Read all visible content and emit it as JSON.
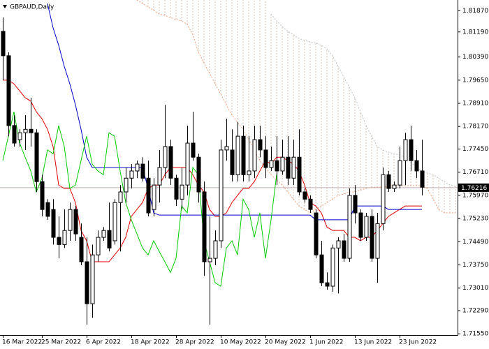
{
  "chart_data": {
    "type": "candlestick",
    "title": "GBPAUD,Daily",
    "categories": [
      "16 Mar 2022",
      null,
      null,
      null,
      null,
      null,
      null,
      "25 Mar 2022",
      null,
      null,
      null,
      null,
      null,
      null,
      null,
      "6 Apr 2022",
      null,
      null,
      null,
      null,
      null,
      null,
      null,
      "18 Apr 2022",
      null,
      null,
      null,
      null,
      null,
      null,
      null,
      "28 Apr 2022",
      null,
      null,
      null,
      null,
      null,
      null,
      null,
      "10 May 2022",
      null,
      null,
      null,
      null,
      null,
      null,
      null,
      "20 May 2022",
      null,
      null,
      null,
      null,
      null,
      null,
      null,
      "1 Jun 2022",
      null,
      null,
      null,
      null,
      null,
      null,
      null,
      "13 Jun 2022",
      null,
      null,
      null,
      null,
      null,
      null,
      null,
      "23 Jun 2022",
      null,
      null,
      null,
      null,
      null,
      null,
      null,
      null,
      null,
      null
    ],
    "open": [
      1.8121,
      1.8043,
      1.782,
      1.7775,
      1.7797,
      1.7808,
      1.7797,
      1.7641,
      1.7574,
      1.7552,
      1.7463,
      1.744,
      1.7485,
      1.7552,
      1.7463,
      1.7385,
      1.7251,
      1.7407,
      1.7463,
      1.7485,
      1.7452,
      1.7574,
      1.7608,
      1.7652,
      1.7675,
      1.7697,
      1.7652,
      1.7552,
      1.763,
      1.7686,
      1.7753,
      1.7652,
      1.7585,
      1.763,
      1.7764,
      1.7719,
      1.7608,
      1.7385,
      1.7396,
      1.7452,
      1.7742,
      1.7742,
      1.7663,
      1.7786,
      1.7663,
      1.7675,
      1.7775,
      1.7742,
      1.7686,
      1.7708,
      1.7675,
      1.7719,
      1.7652,
      1.7719,
      1.7608,
      1.7585,
      1.7541,
      1.7407,
      1.7318,
      1.7307,
      1.7429,
      1.7452,
      1.7396,
      1.7597,
      1.7541,
      1.7463,
      1.753,
      1.7396,
      1.7507,
      1.7663,
      1.7619,
      1.763,
      1.7708,
      1.7775,
      1.7708,
      1.7675,
      null,
      null,
      null,
      null,
      null,
      null
    ],
    "high": [
      1.8165,
      1.8054,
      1.7853,
      1.7808,
      1.7853,
      1.7909,
      1.7808,
      1.7663,
      1.7585,
      1.7585,
      1.753,
      1.7552,
      1.7574,
      1.7563,
      1.7507,
      1.7463,
      1.744,
      1.7485,
      1.7496,
      1.7574,
      1.7585,
      1.763,
      1.7686,
      1.7697,
      1.7708,
      1.7719,
      1.7708,
      1.7652,
      1.7742,
      1.7886,
      1.7775,
      1.7663,
      1.7686,
      1.782,
      1.7864,
      1.773,
      1.7641,
      1.753,
      1.7485,
      1.7775,
      1.7842,
      1.7808,
      1.7831,
      1.782,
      1.7786,
      1.782,
      1.782,
      1.7786,
      1.7753,
      1.7786,
      1.7775,
      1.7786,
      1.7775,
      1.7808,
      1.7619,
      1.7597,
      1.7552,
      1.7452,
      1.7351,
      1.744,
      1.7463,
      1.7474,
      1.7619,
      1.763,
      1.7552,
      1.7541,
      1.7552,
      1.7541,
      1.7686,
      1.7675,
      1.7641,
      1.7753,
      1.7797,
      1.782,
      1.7742,
      1.7775,
      null,
      null,
      null,
      null,
      null,
      null
    ],
    "low": [
      1.7965,
      1.7786,
      1.7753,
      1.7753,
      1.7742,
      1.7753,
      1.7608,
      1.753,
      1.7519,
      1.744,
      1.7396,
      1.7429,
      1.7452,
      1.7452,
      1.7374,
      1.7184,
      1.7206,
      1.7385,
      1.7452,
      1.7418,
      1.744,
      1.7418,
      1.7574,
      1.7619,
      1.7652,
      1.7641,
      1.753,
      1.753,
      1.7574,
      1.7652,
      1.763,
      1.7563,
      1.7552,
      1.7597,
      1.7708,
      1.7574,
      1.734,
      1.7184,
      1.7374,
      1.7429,
      1.7708,
      1.7641,
      1.7641,
      1.7641,
      1.7641,
      1.7652,
      1.7719,
      1.7652,
      1.7675,
      1.763,
      1.7663,
      1.763,
      1.763,
      1.7597,
      1.7574,
      1.7541,
      1.7396,
      1.7307,
      1.7296,
      1.7289,
      1.7284,
      1.7385,
      1.7385,
      1.7507,
      1.7452,
      1.7452,
      1.7385,
      1.7318,
      1.7485,
      1.7608,
      1.7608,
      1.7619,
      1.763,
      1.7675,
      1.7652,
      1.7597,
      null,
      null,
      null,
      null,
      null,
      null
    ],
    "close": [
      1.8043,
      1.782,
      1.7764,
      1.7797,
      1.7808,
      1.7797,
      1.7641,
      1.7552,
      1.753,
      1.7463,
      1.744,
      1.7485,
      1.7552,
      1.7474,
      1.7385,
      1.7251,
      1.7407,
      1.7463,
      1.7485,
      1.7429,
      1.7574,
      1.7608,
      1.7652,
      1.7675,
      1.7697,
      1.7652,
      1.7541,
      1.763,
      1.7686,
      1.7753,
      1.7652,
      1.7585,
      1.763,
      1.7764,
      1.7719,
      1.7608,
      1.7385,
      1.7396,
      1.7452,
      1.7742,
      1.7753,
      1.7663,
      1.7786,
      1.7663,
      1.7675,
      1.7775,
      1.7742,
      1.7686,
      1.7708,
      1.7675,
      1.7719,
      1.7652,
      1.7719,
      1.7608,
      1.7585,
      1.7552,
      1.7407,
      1.7318,
      1.7307,
      1.7429,
      1.7452,
      1.7396,
      1.7597,
      1.7541,
      1.7463,
      1.753,
      1.7396,
      1.7507,
      1.7663,
      1.7619,
      1.763,
      1.7708,
      1.7775,
      1.7708,
      1.7675,
      1.7623,
      null,
      null,
      null,
      null,
      null,
      null
    ],
    "up_color": "#ffffff",
    "down_color": "#000000",
    "lines": [
      {
        "color": "#e00000",
        "dotted": false,
        "values": [
          1.7965,
          1.7965,
          1.7953,
          1.7931,
          1.7909,
          1.7898,
          1.7864,
          1.7842,
          1.7808,
          1.7753,
          1.763,
          1.7619,
          1.7619,
          1.7574,
          1.7485,
          1.7452,
          1.7385,
          1.7385,
          1.7385,
          1.7385,
          1.7407,
          1.7429,
          1.7463,
          1.753,
          1.7552,
          1.7574,
          1.7619,
          1.763,
          1.763,
          1.7663,
          1.7686,
          1.7686,
          1.7686,
          1.7686,
          1.7663,
          1.763,
          1.7608,
          1.7552,
          1.753,
          1.753,
          1.7541,
          1.7574,
          1.7597,
          1.7619,
          1.7619,
          1.7641,
          1.7675,
          1.7708,
          1.7697,
          1.7719,
          1.7719,
          1.7708,
          1.7697,
          1.7675,
          1.763,
          1.7574,
          1.7563,
          1.7541,
          1.7496,
          1.7485,
          1.7485,
          1.7485,
          1.7463,
          1.7463,
          1.7452,
          1.7463,
          1.7463,
          1.7485,
          1.7507,
          1.753,
          1.7541,
          1.7552,
          1.7563,
          1.7563,
          1.7563,
          1.7563,
          null,
          null,
          null,
          null,
          null,
          null
        ]
      },
      {
        "color": "#0000cc",
        "dotted": false,
        "values": [
          null,
          null,
          null,
          null,
          null,
          null,
          null,
          null,
          1.821,
          1.8132,
          1.8076,
          1.8009,
          1.7953,
          1.7886,
          1.7808,
          1.7719,
          1.7686,
          1.7686,
          1.7686,
          1.7686,
          1.7686,
          1.7686,
          1.7686,
          1.7686,
          1.7686,
          1.7686,
          1.7619,
          1.7541,
          1.7534,
          1.7534,
          1.7534,
          1.7534,
          1.7534,
          1.7534,
          1.7534,
          1.7534,
          1.7534,
          1.7534,
          1.7534,
          1.7534,
          1.7534,
          1.7534,
          1.7534,
          1.7534,
          1.7534,
          1.7534,
          1.7534,
          1.7534,
          1.7534,
          1.7534,
          1.7534,
          1.7534,
          1.7534,
          1.7534,
          1.7534,
          1.7534,
          1.7519,
          1.7519,
          1.7519,
          1.7519,
          1.7519,
          1.7519,
          1.7519,
          1.7563,
          1.7563,
          1.7563,
          1.7563,
          1.7563,
          1.7563,
          1.7552,
          1.7552,
          1.7552,
          1.7552,
          1.7552,
          1.7552,
          1.7552,
          null,
          null,
          null,
          null,
          null,
          null
        ]
      },
      {
        "color": "#00cc00",
        "dotted": false,
        "values": [
          1.7708,
          1.7786,
          1.7864,
          1.7764,
          1.7719,
          1.7675,
          1.7608,
          1.7652,
          1.7742,
          1.773,
          1.782,
          1.7753,
          1.7619,
          1.763,
          1.7708,
          1.7786,
          1.7697,
          1.7675,
          1.7663,
          1.7797,
          1.7786,
          1.7675,
          1.7574,
          1.7519,
          1.7474,
          1.7429,
          1.7407,
          1.7452,
          1.7418,
          1.7385,
          1.7351,
          1.7396,
          1.7563,
          1.7541,
          1.7686,
          1.7663,
          1.7452,
          1.7385,
          1.7318,
          1.7307,
          1.7429,
          1.7452,
          1.7407,
          1.7585,
          1.7552,
          1.7463,
          1.7541,
          1.7396,
          1.7519,
          1.7663,
          null,
          null,
          null,
          null,
          null,
          null,
          null,
          null,
          null,
          null,
          null,
          null,
          null,
          null,
          null,
          null,
          null,
          null,
          null,
          null,
          null,
          null,
          null,
          null,
          null,
          null,
          null,
          null,
          null,
          null,
          null,
          null
        ]
      },
      {
        "color": "#e8a07a",
        "dotted": true,
        "values": [
          null,
          null,
          null,
          null,
          null,
          null,
          null,
          null,
          null,
          null,
          null,
          null,
          null,
          null,
          null,
          null,
          null,
          null,
          null,
          null,
          null,
          null,
          null,
          null,
          1.8221,
          1.821,
          1.8199,
          1.8188,
          1.8176,
          1.8172,
          1.8165,
          1.8159,
          1.8154,
          1.8143,
          1.811,
          1.8054,
          1.802,
          1.7987,
          1.7953,
          1.792,
          1.7886,
          1.7853,
          1.7831,
          1.7808,
          1.7775,
          1.7742,
          1.7708,
          1.7686,
          1.7663,
          1.7646,
          1.763,
          1.7608,
          1.7585,
          1.7563,
          1.7552,
          1.7541,
          1.7552,
          1.7563,
          1.7574,
          1.7585,
          1.7597,
          1.7601,
          1.7608,
          1.7608,
          1.7614,
          1.7619,
          1.7623,
          1.7623,
          1.7623,
          1.7628,
          1.7628,
          1.7628,
          1.7628,
          1.7628,
          1.7628,
          1.7628,
          1.7619,
          1.7585,
          1.7552,
          1.7541,
          1.7541,
          1.7541
        ]
      },
      {
        "color": "#c0c0c0",
        "dotted": true,
        "values": [
          null,
          null,
          null,
          null,
          null,
          null,
          null,
          null,
          null,
          null,
          null,
          null,
          null,
          null,
          null,
          null,
          null,
          null,
          null,
          null,
          null,
          null,
          null,
          null,
          null,
          null,
          null,
          null,
          null,
          null,
          null,
          null,
          null,
          null,
          null,
          null,
          null,
          null,
          null,
          null,
          null,
          null,
          null,
          null,
          null,
          null,
          null,
          null,
          1.8176,
          1.8154,
          1.8136,
          1.8121,
          1.811,
          1.8098,
          1.8092,
          1.8087,
          1.8083,
          1.8076,
          1.8065,
          1.8043,
          1.8009,
          1.7976,
          1.7942,
          1.7909,
          1.7864,
          1.782,
          1.7786,
          1.7753,
          1.7742,
          1.7735,
          1.773,
          1.7726,
          1.7719,
          1.7704,
          1.7686,
          1.7675,
          1.7668,
          1.7663,
          1.7652,
          1.7641,
          1.763,
          1.7626
        ]
      }
    ],
    "cloud_color": "#d2c2b2",
    "last_price": {
      "value": 1.76216,
      "label": "1.76216"
    },
    "ylim": [
      1.7151,
      1.8221
    ],
    "yticks": [
      {
        "value": 1.8187,
        "label": "1.81870"
      },
      {
        "value": 1.8119,
        "label": "1.81190"
      },
      {
        "value": 1.8039,
        "label": "1.80390"
      },
      {
        "value": 1.7965,
        "label": "1.79650"
      },
      {
        "value": 1.7891,
        "label": "1.78910"
      },
      {
        "value": 1.7817,
        "label": "1.78170"
      },
      {
        "value": 1.7745,
        "label": "1.77450"
      },
      {
        "value": 1.7671,
        "label": "1.76710"
      },
      {
        "value": 1.7597,
        "label": "1.75970"
      },
      {
        "value": 1.7523,
        "label": "1.75230"
      },
      {
        "value": 1.7449,
        "label": "1.74490"
      },
      {
        "value": 1.7375,
        "label": "1.73750"
      },
      {
        "value": 1.7301,
        "label": "1.73010"
      },
      {
        "value": 1.7229,
        "label": "1.72290"
      },
      {
        "value": 1.7155,
        "label": "1.71550"
      }
    ]
  }
}
